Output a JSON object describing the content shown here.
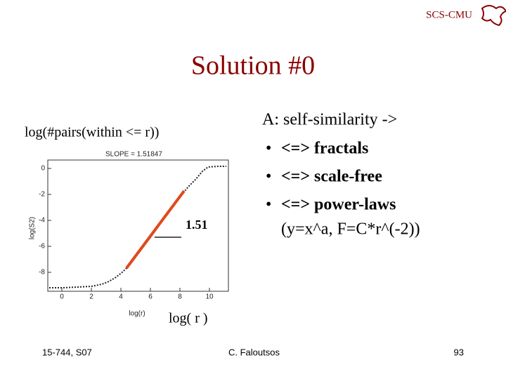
{
  "header": {
    "org": "SCS-CMU"
  },
  "title": "Solution #0",
  "plot": {
    "caption_left": "log(#pairs(within <= r))",
    "slope": "SLOPE = 1.51847",
    "y_axis_label": "log(S2)",
    "x_axis_label": "log(r)",
    "yticks": [
      "0",
      "-2",
      "-4",
      "-6",
      "-8"
    ],
    "xticks": [
      "0",
      "2",
      "4",
      "6",
      "8",
      "10"
    ],
    "annotation": "1.51",
    "caption_bottom": "log( r )"
  },
  "bullets": {
    "intro": "A: self-similarity ->",
    "items": [
      "<=> fractals",
      "<=> scale-free",
      "<=> power-laws"
    ],
    "continuation": "(y=x^a, F=C*r^(-2))"
  },
  "footer": {
    "course": "15-744, S07",
    "author": "C. Faloutsos",
    "page": "93"
  }
}
